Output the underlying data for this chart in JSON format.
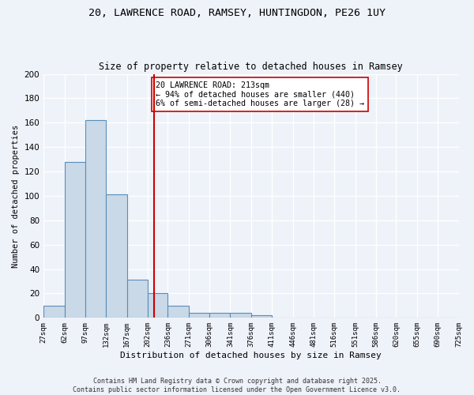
{
  "title1": "20, LAWRENCE ROAD, RAMSEY, HUNTINGDON, PE26 1UY",
  "title2": "Size of property relative to detached houses in Ramsey",
  "xlabel": "Distribution of detached houses by size in Ramsey",
  "ylabel": "Number of detached properties",
  "bin_edges": [
    27,
    62,
    97,
    132,
    167,
    202,
    236,
    271,
    306,
    341,
    376,
    411,
    446,
    481,
    516,
    551,
    586,
    620,
    655,
    690,
    725
  ],
  "bar_heights": [
    10,
    128,
    162,
    101,
    31,
    20,
    10,
    4,
    4,
    4,
    2,
    0,
    0,
    0,
    0,
    0,
    0,
    0,
    0,
    0
  ],
  "bar_color": "#c9d9e8",
  "bar_edge_color": "#5b8db8",
  "property_size": 213,
  "vline_color": "#cc0000",
  "annotation_text": "20 LAWRENCE ROAD: 213sqm\n← 94% of detached houses are smaller (440)\n6% of semi-detached houses are larger (28) →",
  "annotation_box_color": "#ffffff",
  "annotation_box_edge": "#cc0000",
  "background_color": "#eef2f9",
  "grid_color": "#ffffff",
  "footer": "Contains HM Land Registry data © Crown copyright and database right 2025.\nContains public sector information licensed under the Open Government Licence v3.0.",
  "ylim": [
    0,
    200
  ],
  "yticks": [
    0,
    20,
    40,
    60,
    80,
    100,
    120,
    140,
    160,
    180,
    200
  ]
}
